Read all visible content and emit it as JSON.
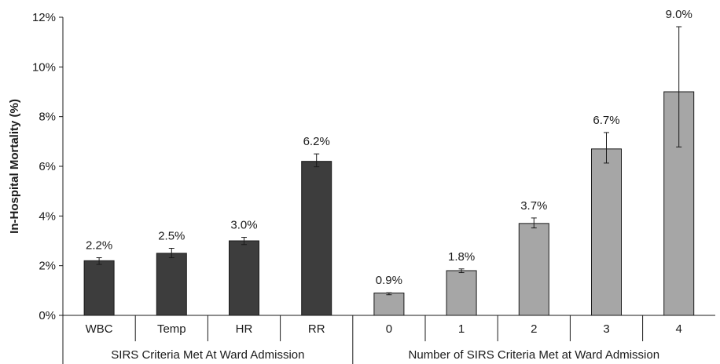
{
  "chart_data": {
    "type": "bar",
    "ylabel": "In-Hospital Mortality (%)",
    "ylim": [
      0,
      12
    ],
    "yticks": [
      0,
      2,
      4,
      6,
      8,
      10,
      12
    ],
    "ytick_labels": [
      "0%",
      "2%",
      "4%",
      "6%",
      "8%",
      "10%",
      "12%"
    ],
    "groups": [
      {
        "name": "SIRS Criteria Met At Ward Admission",
        "color": "#3d3d3d",
        "categories": [
          "WBC",
          "Temp",
          "HR",
          "RR"
        ],
        "values": [
          2.2,
          2.5,
          3.0,
          6.2
        ],
        "value_labels": [
          "2.2%",
          "2.5%",
          "3.0%",
          "6.2%"
        ],
        "error_low": [
          2.05,
          2.32,
          2.85,
          5.98
        ],
        "error_high": [
          2.32,
          2.7,
          3.14,
          6.5
        ]
      },
      {
        "name": "Number of SIRS Criteria Met at Ward Admission",
        "color": "#a6a6a6",
        "categories": [
          "0",
          "1",
          "2",
          "3",
          "4"
        ],
        "values": [
          0.9,
          1.8,
          3.7,
          6.7,
          9.0
        ],
        "value_labels": [
          "0.9%",
          "1.8%",
          "3.7%",
          "6.7%",
          "9.0%"
        ],
        "error_low": [
          0.83,
          1.72,
          3.52,
          6.13,
          6.78
        ],
        "error_high": [
          0.91,
          1.87,
          3.92,
          7.36,
          11.62
        ]
      }
    ],
    "grid": false,
    "legend": "none"
  }
}
